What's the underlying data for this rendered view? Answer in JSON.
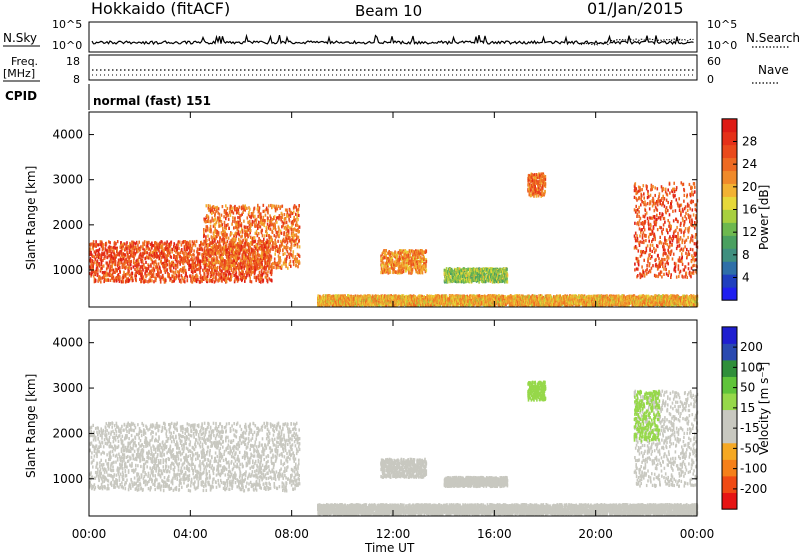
{
  "header": {
    "station": "Hokkaido (fitACF)",
    "beam": "Beam 10",
    "date": "01/Jan/2015"
  },
  "panels": {
    "nsky": {
      "label": "N.Sky",
      "right_label": "N.Search",
      "y_ticks": [
        "10^5",
        "10^0"
      ]
    },
    "freq": {
      "label_line1": "Freq.",
      "label_line2": "[MHz]",
      "right_label": "Nave",
      "left_ticks": [
        "18",
        "8"
      ],
      "right_ticks": [
        "60",
        "0"
      ]
    },
    "cpid": {
      "label": "CPID",
      "value": "normal (fast) 151"
    }
  },
  "x_axis": {
    "label": "Time UT",
    "ticks": [
      "00:00",
      "04:00",
      "08:00",
      "12:00",
      "16:00",
      "20:00",
      "00:00"
    ]
  },
  "chart_data": [
    {
      "type": "heatmap",
      "parameter": "power",
      "ylabel": "Slant Range [km]",
      "yticks": [
        1000,
        2000,
        3000,
        4000
      ],
      "ylim": [
        180,
        4500
      ],
      "xlim_hours": [
        0,
        24
      ],
      "colorbar": {
        "label": "Power [dB]",
        "ticks": [
          4,
          8,
          12,
          16,
          20,
          24,
          28
        ],
        "range": [
          0,
          32
        ],
        "colors": [
          "#1f1ff0",
          "#1f3fbf",
          "#2e6fa8",
          "#3f8f7f",
          "#4aa060",
          "#6db84f",
          "#a8cf3f",
          "#e6d83a",
          "#f2b233",
          "#f08a2a",
          "#ee6a22",
          "#ea4a1c",
          "#e53018",
          "#de1b15"
        ]
      },
      "features": [
        {
          "start_h": 0.0,
          "end_h": 7.2,
          "range_km": [
            700,
            1600
          ],
          "power_db": 26
        },
        {
          "start_h": 4.5,
          "end_h": 8.3,
          "range_km": [
            1000,
            2400
          ],
          "power_db": 24
        },
        {
          "start_h": 11.5,
          "end_h": 13.3,
          "range_km": [
            900,
            1400
          ],
          "power_db": 22
        },
        {
          "start_h": 14.0,
          "end_h": 16.5,
          "range_km": [
            700,
            1000
          ],
          "power_db": 14
        },
        {
          "start_h": 17.3,
          "end_h": 18.0,
          "range_km": [
            2600,
            3100
          ],
          "power_db": 24
        },
        {
          "start_h": 21.5,
          "end_h": 24.0,
          "range_km": [
            800,
            2900
          ],
          "power_db": 26
        },
        {
          "start_h": 9.0,
          "end_h": 24.0,
          "range_km": [
            180,
            400
          ],
          "power_db": 20
        }
      ]
    },
    {
      "type": "heatmap",
      "parameter": "velocity",
      "ylabel": "Slant Range [km]",
      "yticks": [
        1000,
        2000,
        3000,
        4000
      ],
      "ylim": [
        180,
        4500
      ],
      "xlim_hours": [
        0,
        24
      ],
      "colorbar": {
        "label": "Velocity [m s⁻¹]",
        "ticks": [
          200,
          100,
          50,
          15,
          -15,
          -50,
          -100,
          -200
        ],
        "range": [
          -250,
          250
        ],
        "colors": [
          "#e61414",
          "#f04a14",
          "#f5801a",
          "#f5a823",
          "#c8c8c0",
          "#c8c8c0",
          "#96d84a",
          "#5fc43a",
          "#2f8f3a",
          "#2a4ab0",
          "#1f1fd0"
        ]
      },
      "features": [
        {
          "start_h": 0.0,
          "end_h": 8.3,
          "range_km": [
            700,
            2200
          ],
          "velocity_ms": 0
        },
        {
          "start_h": 11.5,
          "end_h": 13.3,
          "range_km": [
            1000,
            1400
          ],
          "velocity_ms": 0
        },
        {
          "start_h": 14.0,
          "end_h": 16.5,
          "range_km": [
            800,
            1000
          ],
          "velocity_ms": 0
        },
        {
          "start_h": 17.3,
          "end_h": 18.0,
          "range_km": [
            2700,
            3100
          ],
          "velocity_ms": 40
        },
        {
          "start_h": 21.5,
          "end_h": 24.0,
          "range_km": [
            800,
            2900
          ],
          "velocity_ms": 0
        },
        {
          "start_h": 21.5,
          "end_h": 22.5,
          "range_km": [
            1800,
            2900
          ],
          "velocity_ms": 40
        },
        {
          "start_h": 9.0,
          "end_h": 24.0,
          "range_km": [
            180,
            400
          ],
          "velocity_ms": -40
        }
      ]
    }
  ]
}
